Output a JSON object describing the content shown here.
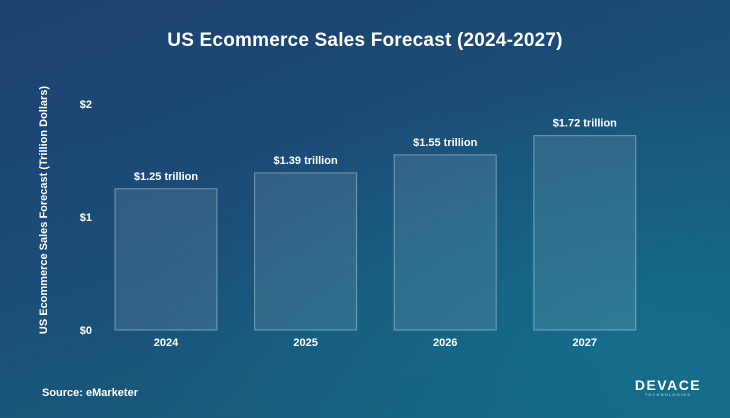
{
  "colors": {
    "background": "#1a4f78",
    "bar_fill": "rgba(255,255,255,0.10)",
    "bar_stroke": "rgba(255,255,255,0.38)",
    "text": "#ffffff"
  },
  "source": "Source: eMarketer",
  "logo": {
    "brand": "DEVACE",
    "sub": "TECHNOLOGIES"
  },
  "chart_data": {
    "type": "bar",
    "title": "US Ecommerce Sales Forecast (2024-2027)",
    "xlabel": "",
    "ylabel": "US Ecommerce Sales Forecast (Trillion Dollars)",
    "categories": [
      "2024",
      "2025",
      "2026",
      "2027"
    ],
    "values": [
      1.25,
      1.39,
      1.55,
      1.72
    ],
    "data_labels": [
      "$1.25 trillion",
      "$1.39 trillion",
      "$1.55 trillion",
      "$1.72 trillion"
    ],
    "ylim": [
      0,
      2
    ],
    "yticks": [
      0,
      1,
      2
    ],
    "ytick_labels": [
      "$0",
      "$1",
      "$2"
    ],
    "grid": false,
    "legend": "none"
  }
}
